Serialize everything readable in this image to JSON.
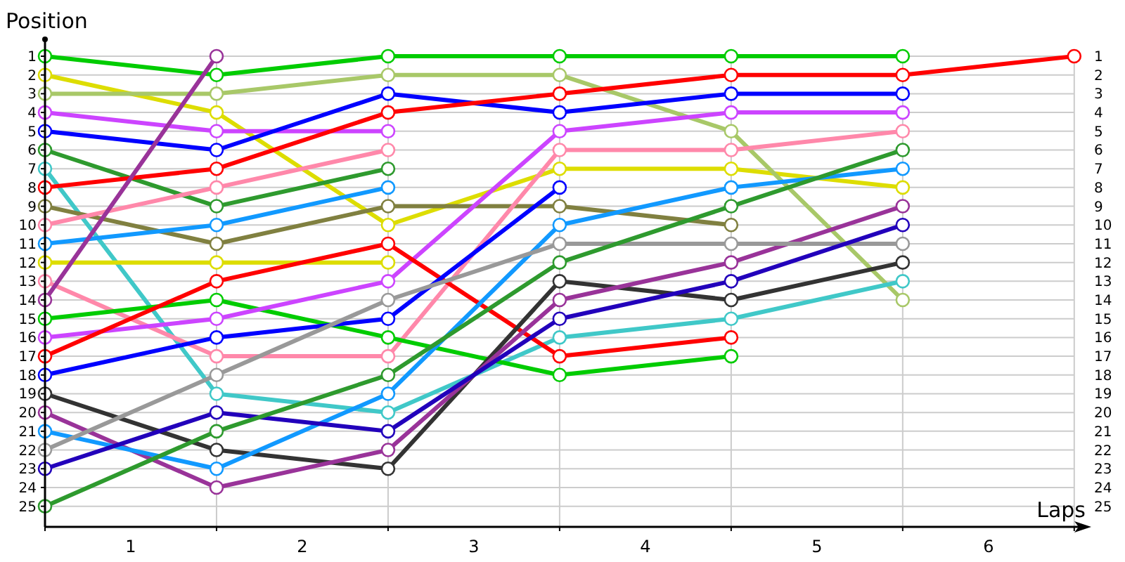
{
  "chart_data": {
    "type": "line",
    "xlabel": "Laps",
    "ylabel": "Position",
    "x": [
      0,
      1,
      2,
      3,
      4,
      5,
      6
    ],
    "xlim": [
      0,
      6.05
    ],
    "ylim": [
      26.1,
      0.1
    ],
    "y2lim": [
      26.1,
      0.1
    ],
    "xticks": [
      {
        "value": 0,
        "label": null
      },
      {
        "value": 0.5,
        "label": "1"
      },
      {
        "value": 1,
        "label": null
      },
      {
        "value": 1.5,
        "label": "2"
      },
      {
        "value": 2,
        "label": null
      },
      {
        "value": 2.5,
        "label": "3"
      },
      {
        "value": 3,
        "label": null
      },
      {
        "value": 3.5,
        "label": "4"
      },
      {
        "value": 4,
        "label": null
      },
      {
        "value": 4.5,
        "label": "5"
      },
      {
        "value": 5,
        "label": null
      },
      {
        "value": 5.5,
        "label": "6"
      },
      {
        "value": 6,
        "label": null
      }
    ],
    "yticks": [
      1,
      2,
      3,
      4,
      5,
      6,
      7,
      8,
      9,
      10,
      11,
      12,
      13,
      14,
      15,
      16,
      17,
      18,
      19,
      20,
      21,
      22,
      23,
      24,
      25
    ],
    "y2ticks": [
      1,
      2,
      3,
      4,
      5,
      6,
      7,
      8,
      9,
      10,
      11,
      12,
      13,
      14,
      15,
      16,
      17,
      18,
      19,
      20,
      21,
      22,
      23,
      24,
      25
    ],
    "grid": true,
    "marker": "circle",
    "line_style": "solid",
    "series": [
      {
        "color": "#00cc00",
        "values": [
          1,
          2,
          1,
          1,
          1,
          1,
          null
        ]
      },
      {
        "color": "#dddd00",
        "values": [
          2,
          4,
          10,
          7,
          7,
          8,
          null
        ]
      },
      {
        "color": "#a8c868",
        "values": [
          3,
          3,
          2,
          2,
          5,
          14,
          null
        ]
      },
      {
        "color": "#cc44ff",
        "values": [
          4,
          5,
          5,
          null,
          null,
          null,
          null
        ]
      },
      {
        "color": "#0000ff",
        "values": [
          5,
          6,
          3,
          4,
          3,
          3,
          null
        ]
      },
      {
        "color": "#2e9a2e",
        "values": [
          6,
          9,
          7,
          null,
          null,
          null,
          null
        ]
      },
      {
        "color": "#40c8c8",
        "values": [
          7,
          19,
          20,
          16,
          15,
          13,
          null
        ]
      },
      {
        "color": "#ff0000",
        "values": [
          8,
          7,
          4,
          3,
          2,
          2,
          1
        ]
      },
      {
        "color": "#808040",
        "values": [
          9,
          11,
          9,
          9,
          10,
          null,
          null
        ]
      },
      {
        "color": "#ff88aa",
        "values": [
          10,
          8,
          6,
          null,
          null,
          null,
          null
        ]
      },
      {
        "color": "#1199ff",
        "values": [
          11,
          10,
          8,
          null,
          null,
          null,
          null
        ]
      },
      {
        "color": "#dddd00",
        "values": [
          12,
          12,
          12,
          null,
          null,
          null,
          null
        ]
      },
      {
        "color": "#ff88aa",
        "values": [
          13,
          17,
          17,
          6,
          6,
          5,
          null
        ]
      },
      {
        "color": "#993399",
        "values": [
          14,
          1,
          null,
          null,
          null,
          null,
          null
        ]
      },
      {
        "color": "#00cc00",
        "values": [
          15,
          14,
          16,
          18,
          17,
          null,
          null
        ]
      },
      {
        "color": "#cc44ff",
        "values": [
          16,
          15,
          13,
          5,
          4,
          4,
          null
        ]
      },
      {
        "color": "#ff0000",
        "values": [
          17,
          13,
          11,
          17,
          16,
          null,
          null
        ]
      },
      {
        "color": "#0000ff",
        "values": [
          18,
          16,
          15,
          8,
          null,
          null,
          null
        ]
      },
      {
        "color": "#333333",
        "values": [
          19,
          22,
          23,
          13,
          14,
          12,
          null
        ]
      },
      {
        "color": "#993399",
        "values": [
          20,
          24,
          22,
          14,
          12,
          9,
          null
        ]
      },
      {
        "color": "#1199ff",
        "values": [
          21,
          23,
          19,
          10,
          8,
          7,
          null
        ]
      },
      {
        "color": "#999999",
        "values": [
          22,
          18,
          14,
          11,
          11,
          11,
          null
        ]
      },
      {
        "color": "#2200bb",
        "values": [
          23,
          20,
          21,
          15,
          13,
          10,
          null
        ]
      },
      {
        "color": "#2e9a2e",
        "values": [
          25,
          21,
          18,
          12,
          9,
          6,
          null
        ]
      }
    ]
  }
}
